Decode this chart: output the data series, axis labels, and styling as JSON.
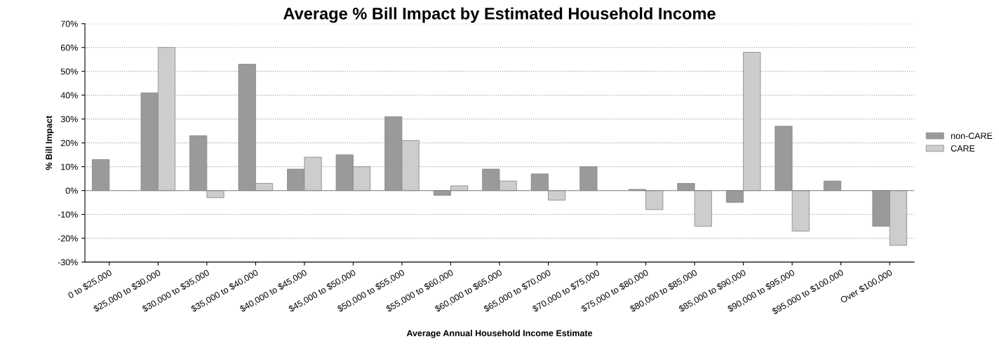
{
  "chart_data": {
    "type": "bar",
    "title": "Average % Bill Impact by Estimated Household Income",
    "xlabel": "Average Annual Household Income Estimate",
    "ylabel": "% Bill Impact",
    "categories": [
      "0 to $25,000",
      "$25,000 to $30,000",
      "$30,000 to $35,000",
      "$35,000 to $40,000",
      "$40,000 to $45,000",
      "$45,000 to $50,000",
      "$50,000 to $55,000",
      "$55,000 to $60,000",
      "$60,000 to $65,000",
      "$65,000 to $70,000",
      "$70,000 to $75,000",
      "$75,000 to $80,000",
      "$80,000 to $85,000",
      "$85,000 to $90,000",
      "$90,000 to $95,000",
      "$95,000 to $100,000",
      "Over $100,000"
    ],
    "series": [
      {
        "name": "non-CARE",
        "color": "#9a9a9a",
        "values": [
          13,
          41,
          23,
          53,
          9,
          15,
          31,
          -2,
          9,
          7,
          10,
          0.5,
          3,
          -5,
          27,
          4,
          -15
        ]
      },
      {
        "name": "CARE",
        "color": "#cdcdcd",
        "values": [
          null,
          60,
          -3,
          3,
          14,
          10,
          21,
          2,
          4,
          -4,
          null,
          -8,
          -15,
          58,
          -17,
          null,
          -23
        ]
      }
    ],
    "ylim": [
      -30,
      70
    ],
    "yticks": [
      {
        "value": -30,
        "label": "-30%"
      },
      {
        "value": -20,
        "label": "-20%"
      },
      {
        "value": -10,
        "label": "-10%"
      },
      {
        "value": 0,
        "label": "0%"
      },
      {
        "value": 10,
        "label": "10%"
      },
      {
        "value": 20,
        "label": "20%"
      },
      {
        "value": 30,
        "label": "30%"
      },
      {
        "value": 40,
        "label": "40%"
      },
      {
        "value": 50,
        "label": "50%"
      },
      {
        "value": 60,
        "label": "60%"
      },
      {
        "value": 70,
        "label": "70%"
      }
    ],
    "grid": "y",
    "legend": "right"
  }
}
